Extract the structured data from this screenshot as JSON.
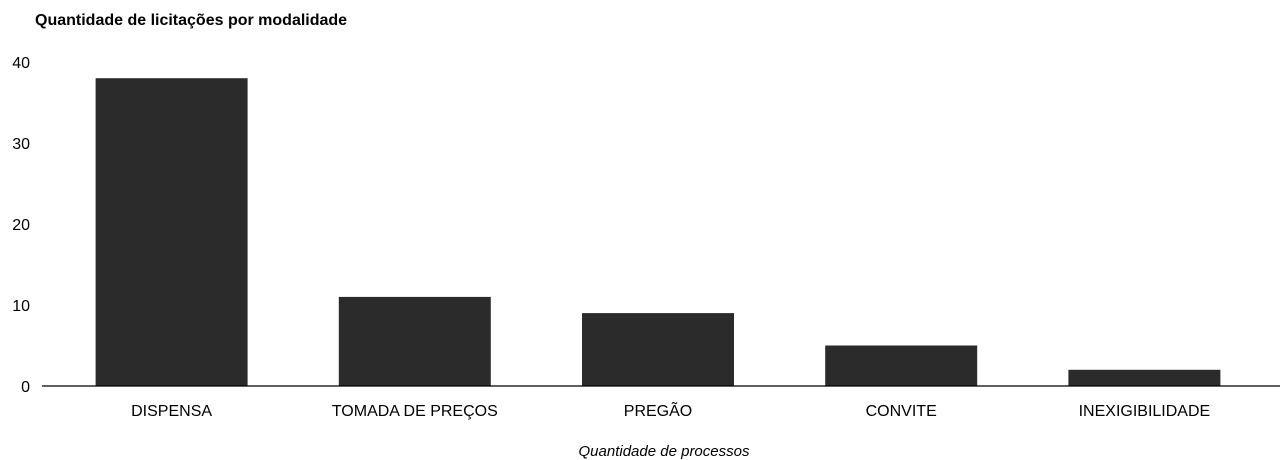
{
  "chart_data": {
    "type": "bar",
    "title": "Quantidade de licitações por modalidade",
    "xlabel": "Quantidade de processos",
    "ylabel": "",
    "categories": [
      "DISPENSA",
      "TOMADA DE PREÇOS",
      "PREGÃO",
      "CONVITE",
      "INEXIGIBILIDADE"
    ],
    "values": [
      38,
      11,
      9,
      5,
      2
    ],
    "ylim": [
      0,
      40
    ],
    "yticks": [
      "0",
      "10",
      "20",
      "30",
      "40"
    ],
    "grid": false,
    "legend": "none",
    "bar_color": "#2b2b2b"
  }
}
